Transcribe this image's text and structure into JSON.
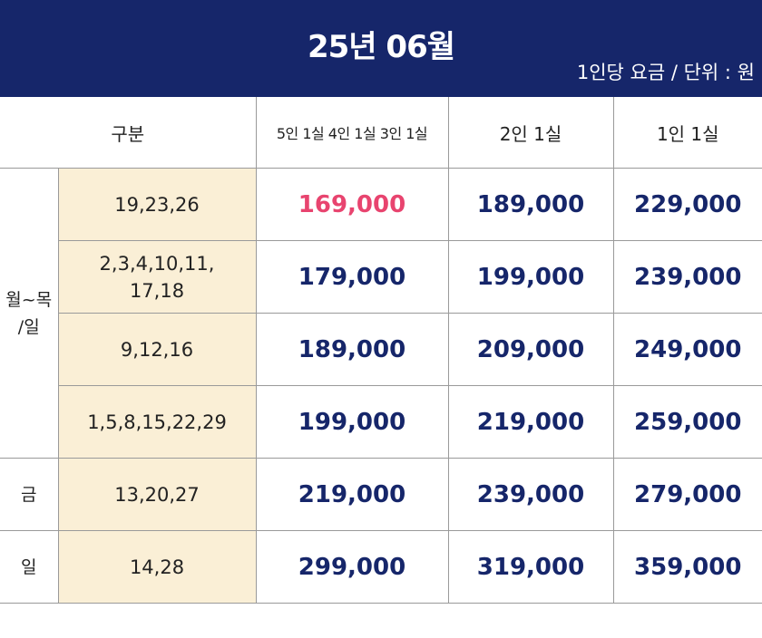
{
  "header": {
    "title": "25년 06월",
    "unit": "1인당 요금 / 단위 : 원"
  },
  "columns": {
    "category": "구분",
    "col1": "5인 1실 4인 1실 3인 1실",
    "col2": "2인 1실",
    "col3": "1인 1실"
  },
  "groups": {
    "weekday": "월~목\n/일",
    "fri": "금",
    "sun": "일"
  },
  "rows": [
    {
      "dates": "19,23,26",
      "p1": "169,000",
      "p2": "189,000",
      "p3": "229,000"
    },
    {
      "dates": "2,3,4,10,11,\n17,18",
      "p1": "179,000",
      "p2": "199,000",
      "p3": "239,000"
    },
    {
      "dates": "9,12,16",
      "p1": "189,000",
      "p2": "209,000",
      "p3": "249,000"
    },
    {
      "dates": "1,5,8,15,22,29",
      "p1": "199,000",
      "p2": "219,000",
      "p3": "259,000"
    },
    {
      "dates": "13,20,27",
      "p1": "219,000",
      "p2": "239,000",
      "p3": "279,000"
    },
    {
      "dates": "14,28",
      "p1": "299,000",
      "p2": "319,000",
      "p3": "359,000"
    }
  ],
  "colors": {
    "header_bg": "#16266a",
    "price_text": "#16266a",
    "highlight_price": "#e8446f",
    "date_cell_bg": "#faefd6"
  }
}
